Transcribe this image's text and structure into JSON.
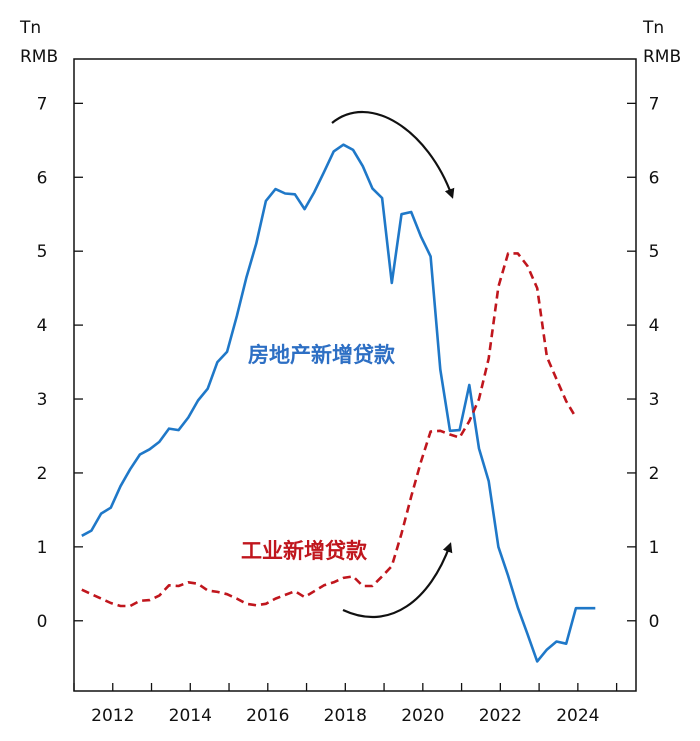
{
  "chart_data": {
    "type": "line",
    "y_unit_left": [
      "Tn",
      "RMB"
    ],
    "y_unit_right": [
      "Tn",
      "RMB"
    ],
    "ylim": [
      -0.95,
      7.6
    ],
    "yticks": [
      0,
      1,
      2,
      3,
      4,
      5,
      6,
      7
    ],
    "xlim": [
      2011.0,
      2025.5
    ],
    "xticks": [
      2012,
      2014,
      2016,
      2018,
      2020,
      2022,
      2024
    ],
    "series": [
      {
        "name": "房地产新增贷款",
        "label": "房地产新增贷款",
        "color": "#1f78c8",
        "style": "solid",
        "x": [
          2011.2,
          2011.45,
          2011.7,
          2011.95,
          2012.2,
          2012.45,
          2012.7,
          2012.95,
          2013.2,
          2013.45,
          2013.7,
          2013.95,
          2014.2,
          2014.45,
          2014.7,
          2014.95,
          2015.2,
          2015.45,
          2015.7,
          2015.95,
          2016.2,
          2016.45,
          2016.7,
          2016.95,
          2017.2,
          2017.45,
          2017.7,
          2017.95,
          2018.2,
          2018.45,
          2018.7,
          2018.95,
          2019.2,
          2019.45,
          2019.7,
          2019.95,
          2020.2,
          2020.45,
          2020.7,
          2020.95,
          2021.2,
          2021.45,
          2021.7,
          2021.95,
          2022.2,
          2022.45,
          2022.7,
          2022.95,
          2023.2,
          2023.45,
          2023.7,
          2023.95,
          2024.2,
          2024.45
        ],
        "values": [
          1.15,
          1.22,
          1.45,
          1.53,
          1.82,
          2.05,
          2.25,
          2.32,
          2.42,
          2.6,
          2.58,
          2.75,
          2.98,
          3.14,
          3.5,
          3.64,
          4.12,
          4.65,
          5.1,
          5.68,
          5.84,
          5.78,
          5.77,
          5.57,
          5.8,
          6.07,
          6.35,
          6.44,
          6.37,
          6.15,
          5.85,
          5.72,
          4.57,
          5.5,
          5.53,
          5.2,
          4.93,
          3.4,
          2.57,
          2.58,
          3.19,
          2.33,
          1.89,
          1.0,
          0.61,
          0.18,
          -0.18,
          -0.55,
          -0.39,
          -0.28,
          -0.31,
          0.17,
          0.17,
          0.17
        ]
      },
      {
        "name": "工业新增贷款",
        "label": "工业新增贷款",
        "color": "#c0161d",
        "style": "dashed",
        "x": [
          2011.2,
          2011.45,
          2011.7,
          2011.95,
          2012.2,
          2012.45,
          2012.7,
          2012.95,
          2013.2,
          2013.45,
          2013.7,
          2013.95,
          2014.2,
          2014.45,
          2014.7,
          2014.95,
          2015.2,
          2015.45,
          2015.7,
          2015.95,
          2016.2,
          2016.45,
          2016.7,
          2016.95,
          2017.2,
          2017.45,
          2017.7,
          2017.95,
          2018.2,
          2018.45,
          2018.7,
          2018.95,
          2019.2,
          2019.45,
          2019.7,
          2019.95,
          2020.2,
          2020.45,
          2020.7,
          2020.95,
          2021.2,
          2021.45,
          2021.7,
          2021.95,
          2022.2,
          2022.45,
          2022.7,
          2022.95,
          2023.2,
          2023.45,
          2023.7,
          2023.95
        ],
        "values": [
          0.42,
          0.36,
          0.3,
          0.24,
          0.2,
          0.2,
          0.27,
          0.28,
          0.34,
          0.48,
          0.47,
          0.52,
          0.5,
          0.41,
          0.39,
          0.36,
          0.3,
          0.23,
          0.21,
          0.23,
          0.3,
          0.35,
          0.4,
          0.32,
          0.4,
          0.48,
          0.52,
          0.58,
          0.6,
          0.47,
          0.47,
          0.6,
          0.74,
          1.18,
          1.68,
          2.15,
          2.56,
          2.57,
          2.52,
          2.48,
          2.7,
          3.0,
          3.55,
          4.52,
          4.97,
          4.97,
          4.8,
          4.5,
          3.57,
          3.27,
          2.97,
          2.75
        ]
      }
    ],
    "annotations": [
      {
        "text": "房地产新增贷款",
        "color": "#2d6fc4"
      },
      {
        "text": "工业新增贷款",
        "color": "#c0161d"
      }
    ]
  }
}
